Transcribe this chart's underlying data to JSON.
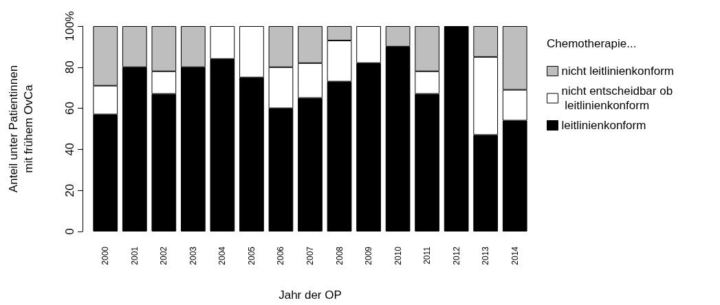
{
  "chart_data": {
    "type": "bar",
    "stacked": true,
    "xlabel": "Jahr der OP",
    "ylabel": "Anteil unter Patientinnen\nmit frühem OvCa",
    "legend_title": "Chemotherapie...",
    "legend": "right",
    "grid": false,
    "categories": [
      "2000",
      "2001",
      "2002",
      "2003",
      "2004",
      "2005",
      "2006",
      "2007",
      "2008",
      "2009",
      "2010",
      "2011",
      "2012",
      "2013",
      "2014"
    ],
    "ylim": [
      0,
      100
    ],
    "yticks": [
      0,
      20,
      40,
      60,
      80,
      {
        "value": 100,
        "label": "100%"
      }
    ],
    "series": [
      {
        "name": "leitlinienkonform",
        "color": "#000000",
        "values": [
          57,
          80,
          67,
          80,
          84,
          75,
          60,
          65,
          73,
          82,
          90,
          67,
          100,
          47,
          54
        ]
      },
      {
        "name": "nicht entscheidbar ob leitlinienkonform",
        "color": "#ffffff",
        "values": [
          14,
          0,
          11,
          0,
          16,
          25,
          20,
          17,
          20,
          18,
          0,
          11,
          0,
          38,
          15
        ]
      },
      {
        "name": "nicht leitlinienkonform",
        "color": "#bebebe",
        "values": [
          29,
          20,
          22,
          20,
          0,
          0,
          20,
          18,
          7,
          0,
          10,
          22,
          0,
          15,
          31
        ]
      }
    ]
  }
}
